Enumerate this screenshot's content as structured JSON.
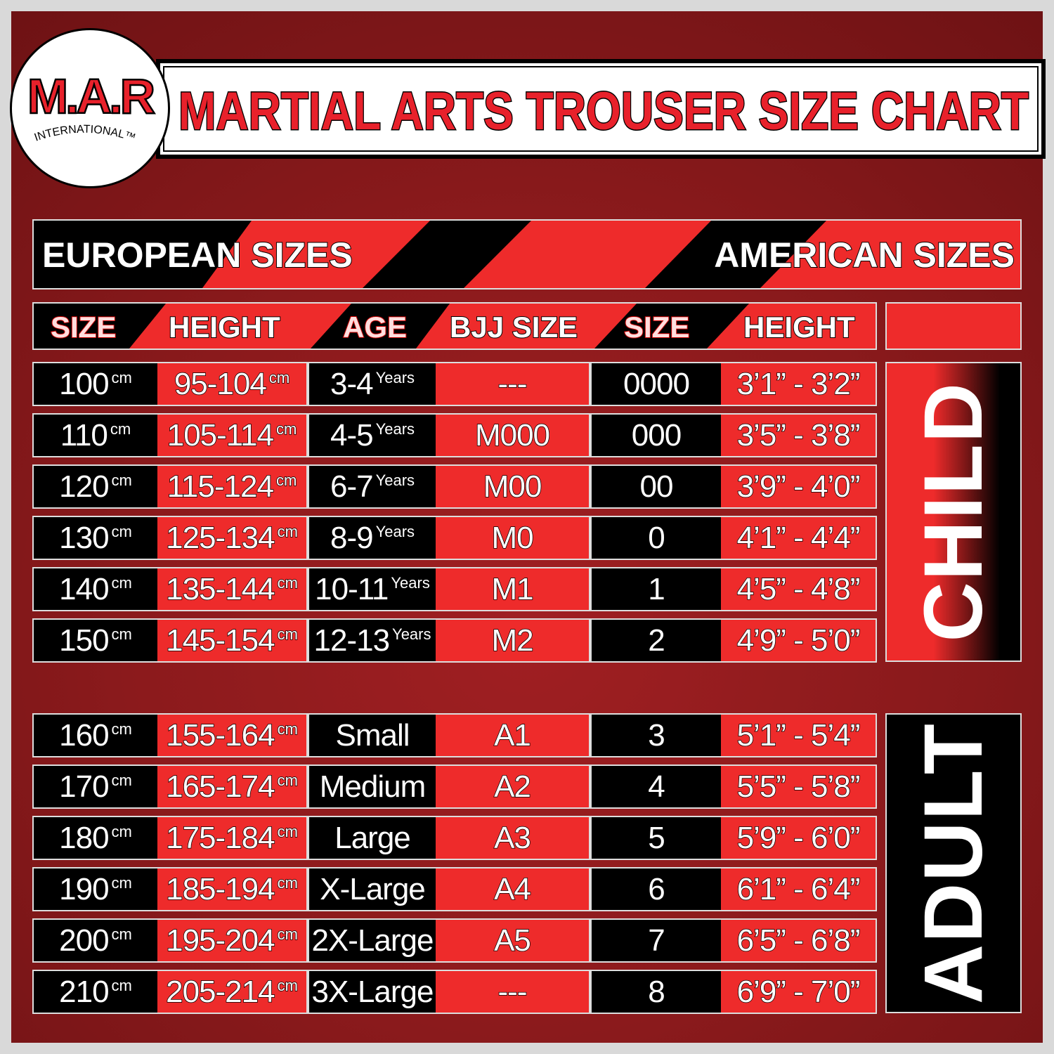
{
  "brand": {
    "logo_text": "M.A.R",
    "logo_subtext": "INTERNATIONAL",
    "trademark": "™"
  },
  "title": "MARTIAL ARTS TROUSER SIZE CHART",
  "banner": {
    "left": "EUROPEAN SIZES",
    "right": "AMERICAN SIZES"
  },
  "headers": [
    "SIZE",
    "HEIGHT",
    "AGE",
    "BJJ SIZE",
    "SIZE",
    "HEIGHT"
  ],
  "units": {
    "cm": "cm",
    "years": "Years"
  },
  "colors": {
    "background": "#8b1a1c",
    "red": "#ee2b2b",
    "black": "#000000",
    "title_red": "#e8212b"
  },
  "groups": {
    "child": {
      "label": "CHILD",
      "rows": [
        {
          "size": "100",
          "height": "95-104",
          "age": "3-4",
          "bjj": "---",
          "us_size": "0000",
          "us_height": "3’1” - 3’2”"
        },
        {
          "size": "110",
          "height": "105-114",
          "age": "4-5",
          "bjj": "M000",
          "us_size": "000",
          "us_height": "3’5” - 3’8”"
        },
        {
          "size": "120",
          "height": "115-124",
          "age": "6-7",
          "bjj": "M00",
          "us_size": "00",
          "us_height": "3’9” - 4’0”"
        },
        {
          "size": "130",
          "height": "125-134",
          "age": "8-9",
          "bjj": "M0",
          "us_size": "0",
          "us_height": "4’1” - 4’4”"
        },
        {
          "size": "140",
          "height": "135-144",
          "age": "10-11",
          "bjj": "M1",
          "us_size": "1",
          "us_height": "4’5” - 4’8”"
        },
        {
          "size": "150",
          "height": "145-154",
          "age": "12-13",
          "bjj": "M2",
          "us_size": "2",
          "us_height": "4’9” - 5’0”"
        }
      ]
    },
    "adult": {
      "label": "ADULT",
      "rows": [
        {
          "size": "160",
          "height": "155-164",
          "age": "Small",
          "bjj": "A1",
          "us_size": "3",
          "us_height": "5’1” - 5’4”"
        },
        {
          "size": "170",
          "height": "165-174",
          "age": "Medium",
          "bjj": "A2",
          "us_size": "4",
          "us_height": "5’5” - 5’8”"
        },
        {
          "size": "180",
          "height": "175-184",
          "age": "Large",
          "bjj": "A3",
          "us_size": "5",
          "us_height": "5’9” - 6’0”"
        },
        {
          "size": "190",
          "height": "185-194",
          "age": "X-Large",
          "bjj": "A4",
          "us_size": "6",
          "us_height": "6’1” - 6’4”"
        },
        {
          "size": "200",
          "height": "195-204",
          "age": "2X-Large",
          "bjj": "A5",
          "us_size": "7",
          "us_height": "6’5” - 6’8”"
        },
        {
          "size": "210",
          "height": "205-214",
          "age": "3X-Large",
          "bjj": "---",
          "us_size": "8",
          "us_height": "6’9” - 7’0”"
        }
      ]
    }
  }
}
